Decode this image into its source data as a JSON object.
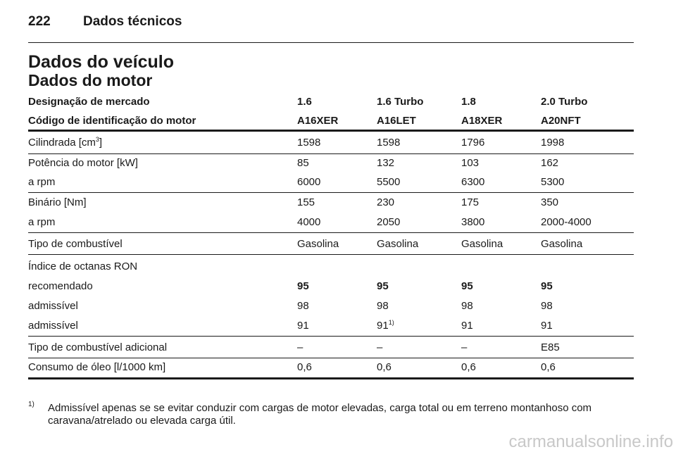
{
  "header": {
    "page_number": "222",
    "section": "Dados técnicos"
  },
  "title": "Dados do veículo",
  "subtitle": "Dados do motor",
  "table": {
    "header_rows": [
      [
        "Designação de mercado",
        "1.6",
        "1.6 Turbo",
        "1.8",
        "2.0 Turbo"
      ],
      [
        "Código de identificação do motor",
        "A16XER",
        "A16LET",
        "A18XER",
        "A20NFT"
      ]
    ],
    "rows": [
      [
        [
          "Cilindrada [cm",
          "3",
          "]"
        ],
        "1598",
        "1598",
        "1796",
        "1998"
      ],
      [
        "Potência do motor [kW]",
        "85",
        "132",
        "103",
        "162"
      ],
      [
        "a rpm",
        "6000",
        "5500",
        "6300",
        "5300"
      ],
      [
        "Binário [Nm]",
        "155",
        "230",
        "175",
        "350"
      ],
      [
        "a rpm",
        "4000",
        "2050",
        "3800",
        "2000-4000"
      ],
      [
        "Tipo de combustível",
        "Gasolina",
        "Gasolina",
        "Gasolina",
        "Gasolina"
      ],
      [
        "Índice de octanas RON"
      ],
      [
        "recomendado",
        "95",
        "95",
        "95",
        "95"
      ],
      [
        "admissível",
        "98",
        "98",
        "98",
        "98"
      ],
      [
        "admissível",
        "91",
        [
          "91",
          "1)"
        ],
        "91",
        "91"
      ],
      [
        "Tipo de combustível adicional",
        "–",
        "–",
        "–",
        "E85"
      ],
      [
        "Consumo de óleo [l/1000 km]",
        "0,6",
        "0,6",
        "0,6",
        "0,6"
      ]
    ]
  },
  "footnote": {
    "marker": "1)",
    "text": "Admissível apenas se se evitar conduzir com cargas de motor elevadas, carga total ou em terreno montanhoso com caravana/atrelado ou elevada carga útil."
  },
  "watermark": "carmanualsonline.info"
}
